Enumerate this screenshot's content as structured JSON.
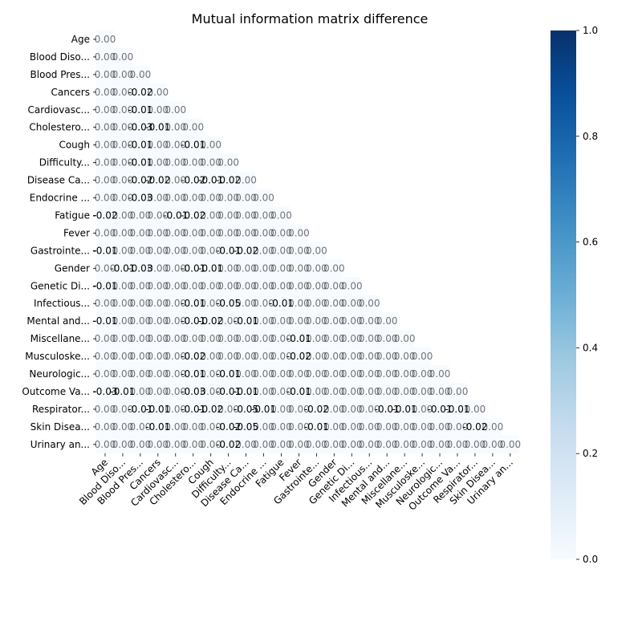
{
  "chart_data": {
    "type": "heatmap",
    "title": "Mutual information matrix difference",
    "xlabel": "",
    "ylabel": "",
    "labels": [
      "Age",
      "Blood Diso...",
      "Blood Pres...",
      "Cancers",
      "Cardiovasc...",
      "Cholestero...",
      "Cough",
      "Difficulty...",
      "Disease Ca...",
      "Endocrine ...",
      "Fatigue",
      "Fever",
      "Gastrointe...",
      "Gender",
      "Genetic Di...",
      "Infectious...",
      "Mental and...",
      "Miscellane...",
      "Musculoske...",
      "Neurologic...",
      "Outcome Va...",
      "Respirator...",
      "Skin Disea...",
      "Urinary an..."
    ],
    "mask": "upper-triangle",
    "colormap": "Blues",
    "vmin": 0,
    "vmax": 1,
    "colorbar_ticks": [
      "0.0",
      "0.2",
      "0.4",
      "0.6",
      "0.8",
      "1.0"
    ],
    "annotations": [
      {
        "row": 3,
        "col": 2,
        "text": "-0.02"
      },
      {
        "row": 4,
        "col": 2,
        "text": "-0.01"
      },
      {
        "row": 5,
        "col": 2,
        "text": "-0.03"
      },
      {
        "row": 5,
        "col": 3,
        "text": "-0.01"
      },
      {
        "row": 6,
        "col": 2,
        "text": "-0.01"
      },
      {
        "row": 6,
        "col": 5,
        "text": "-0.01"
      },
      {
        "row": 7,
        "col": 2,
        "text": "-0.01"
      },
      {
        "row": 8,
        "col": 2,
        "text": "-0.02"
      },
      {
        "row": 8,
        "col": 3,
        "text": "-0.02"
      },
      {
        "row": 8,
        "col": 5,
        "text": "-0.02"
      },
      {
        "row": 8,
        "col": 6,
        "text": "-0.01"
      },
      {
        "row": 8,
        "col": 7,
        "text": "-0.02"
      },
      {
        "row": 9,
        "col": 2,
        "text": "-0.03"
      },
      {
        "row": 10,
        "col": 0,
        "text": "-0.02"
      },
      {
        "row": 10,
        "col": 4,
        "text": "-0.01"
      },
      {
        "row": 10,
        "col": 5,
        "text": "-0.02"
      },
      {
        "row": 12,
        "col": 0,
        "text": "-0.01"
      },
      {
        "row": 12,
        "col": 7,
        "text": "-0.01"
      },
      {
        "row": 12,
        "col": 8,
        "text": "-0.02"
      },
      {
        "row": 13,
        "col": 1,
        "text": "-0.01"
      },
      {
        "row": 13,
        "col": 2,
        "text": "-0.03"
      },
      {
        "row": 13,
        "col": 5,
        "text": "-0.01"
      },
      {
        "row": 13,
        "col": 6,
        "text": "-0.01"
      },
      {
        "row": 14,
        "col": 0,
        "text": "-0.01"
      },
      {
        "row": 15,
        "col": 5,
        "text": "-0.01"
      },
      {
        "row": 15,
        "col": 7,
        "text": "-0.05"
      },
      {
        "row": 15,
        "col": 10,
        "text": "-0.01"
      },
      {
        "row": 16,
        "col": 0,
        "text": "-0.01"
      },
      {
        "row": 16,
        "col": 5,
        "text": "-0.01"
      },
      {
        "row": 16,
        "col": 6,
        "text": "-0.02"
      },
      {
        "row": 16,
        "col": 8,
        "text": "-0.01"
      },
      {
        "row": 17,
        "col": 11,
        "text": "-0.01"
      },
      {
        "row": 18,
        "col": 5,
        "text": "-0.02"
      },
      {
        "row": 18,
        "col": 11,
        "text": "-0.02"
      },
      {
        "row": 19,
        "col": 5,
        "text": "-0.01"
      },
      {
        "row": 19,
        "col": 7,
        "text": "-0.01"
      },
      {
        "row": 20,
        "col": 0,
        "text": "-0.03"
      },
      {
        "row": 20,
        "col": 1,
        "text": "-0.01"
      },
      {
        "row": 20,
        "col": 5,
        "text": "-0.03"
      },
      {
        "row": 20,
        "col": 7,
        "text": "-0.01"
      },
      {
        "row": 20,
        "col": 8,
        "text": "-0.01"
      },
      {
        "row": 20,
        "col": 11,
        "text": "-0.01"
      },
      {
        "row": 21,
        "col": 2,
        "text": "-0.01"
      },
      {
        "row": 21,
        "col": 3,
        "text": "-0.01"
      },
      {
        "row": 21,
        "col": 5,
        "text": "-0.01"
      },
      {
        "row": 21,
        "col": 6,
        "text": "-0.02"
      },
      {
        "row": 21,
        "col": 8,
        "text": "-0.05"
      },
      {
        "row": 21,
        "col": 9,
        "text": "-0.01"
      },
      {
        "row": 21,
        "col": 12,
        "text": "-0.02"
      },
      {
        "row": 21,
        "col": 16,
        "text": "-0.01"
      },
      {
        "row": 21,
        "col": 17,
        "text": "-0.01"
      },
      {
        "row": 21,
        "col": 19,
        "text": "-0.01"
      },
      {
        "row": 21,
        "col": 20,
        "text": "-0.01"
      },
      {
        "row": 22,
        "col": 3,
        "text": "-0.01"
      },
      {
        "row": 22,
        "col": 7,
        "text": "-0.02"
      },
      {
        "row": 22,
        "col": 8,
        "text": "-0.05"
      },
      {
        "row": 22,
        "col": 12,
        "text": "-0.01"
      },
      {
        "row": 22,
        "col": 21,
        "text": "-0.02"
      },
      {
        "row": 23,
        "col": 7,
        "text": "-0.02"
      }
    ],
    "faint_cell_text": "0.00",
    "colors": {
      "cell_fill": "#f7fbff",
      "colorbar_start": "#f7fbff",
      "colorbar_end": "#08306b"
    }
  }
}
